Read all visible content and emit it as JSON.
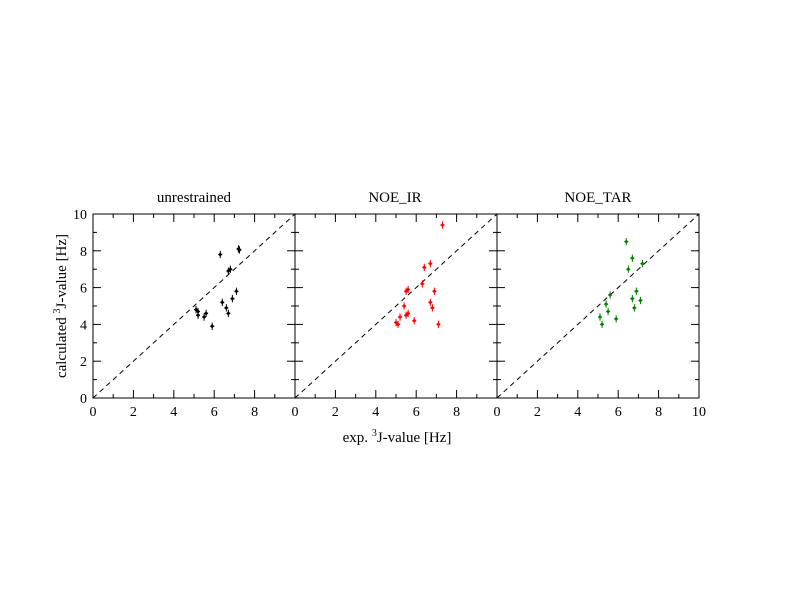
{
  "figure": {
    "ylabel_prefix": "calculated ",
    "ylabel_sup": "3",
    "ylabel_suffix": "J-value [Hz]",
    "xlabel_prefix": "exp. ",
    "xlabel_sup": "3",
    "xlabel_suffix": "J-value [Hz]"
  },
  "chart_data": [
    {
      "type": "scatter",
      "title": "unrestrained",
      "xlim": [
        0,
        10
      ],
      "ylim": [
        0,
        10
      ],
      "x_ticks": [
        "0",
        "2",
        "4",
        "6",
        "8"
      ],
      "y_ticks": [
        "0",
        "2",
        "4",
        "6",
        "8",
        "10"
      ],
      "diagonal": "y = x (dashed)",
      "color": "#000000",
      "points": [
        {
          "x": 5.1,
          "y": 4.8,
          "err": 0.2
        },
        {
          "x": 5.2,
          "y": 4.5,
          "err": 0.2
        },
        {
          "x": 5.2,
          "y": 4.7,
          "err": 0.2
        },
        {
          "x": 5.5,
          "y": 4.4,
          "err": 0.2
        },
        {
          "x": 5.6,
          "y": 4.6,
          "err": 0.2
        },
        {
          "x": 5.9,
          "y": 3.9,
          "err": 0.2
        },
        {
          "x": 6.3,
          "y": 7.8,
          "err": 0.2
        },
        {
          "x": 6.4,
          "y": 5.2,
          "err": 0.2
        },
        {
          "x": 6.6,
          "y": 4.9,
          "err": 0.2
        },
        {
          "x": 6.7,
          "y": 4.6,
          "err": 0.2
        },
        {
          "x": 6.7,
          "y": 6.9,
          "err": 0.2
        },
        {
          "x": 6.8,
          "y": 7.0,
          "err": 0.2
        },
        {
          "x": 6.9,
          "y": 5.4,
          "err": 0.2
        },
        {
          "x": 7.1,
          "y": 5.8,
          "err": 0.2
        },
        {
          "x": 7.2,
          "y": 8.1,
          "err": 0.2
        },
        {
          "x": 7.25,
          "y": 8.05,
          "err": 0.2
        }
      ]
    },
    {
      "type": "scatter",
      "title": "NOE_IR",
      "xlim": [
        0,
        10
      ],
      "ylim": [
        0,
        10
      ],
      "x_ticks": [
        "0",
        "2",
        "4",
        "6",
        "8"
      ],
      "y_ticks": [],
      "diagonal": "y = x (dashed)",
      "color": "#ff0000",
      "points": [
        {
          "x": 5.0,
          "y": 4.1,
          "err": 0.2
        },
        {
          "x": 5.1,
          "y": 4.0,
          "err": 0.2
        },
        {
          "x": 5.2,
          "y": 4.4,
          "err": 0.2
        },
        {
          "x": 5.4,
          "y": 5.0,
          "err": 0.2
        },
        {
          "x": 5.5,
          "y": 4.5,
          "err": 0.2
        },
        {
          "x": 5.5,
          "y": 5.8,
          "err": 0.2
        },
        {
          "x": 5.6,
          "y": 4.6,
          "err": 0.2
        },
        {
          "x": 5.6,
          "y": 5.9,
          "err": 0.2
        },
        {
          "x": 5.9,
          "y": 4.2,
          "err": 0.2
        },
        {
          "x": 6.3,
          "y": 6.2,
          "err": 0.2
        },
        {
          "x": 6.4,
          "y": 7.1,
          "err": 0.2
        },
        {
          "x": 6.7,
          "y": 7.3,
          "err": 0.2
        },
        {
          "x": 6.7,
          "y": 5.2,
          "err": 0.2
        },
        {
          "x": 6.8,
          "y": 4.9,
          "err": 0.2
        },
        {
          "x": 6.9,
          "y": 5.8,
          "err": 0.2
        },
        {
          "x": 7.1,
          "y": 4.0,
          "err": 0.2
        },
        {
          "x": 7.3,
          "y": 9.4,
          "err": 0.2
        }
      ]
    },
    {
      "type": "scatter",
      "title": "NOE_TAR",
      "xlim": [
        0,
        10
      ],
      "ylim": [
        0,
        10
      ],
      "x_ticks": [
        "0",
        "2",
        "4",
        "6",
        "8",
        "10"
      ],
      "y_ticks": [],
      "diagonal": "y = x (dashed)",
      "color": "#008000",
      "points": [
        {
          "x": 5.1,
          "y": 4.4,
          "err": 0.2
        },
        {
          "x": 5.2,
          "y": 4.0,
          "err": 0.2
        },
        {
          "x": 5.4,
          "y": 5.1,
          "err": 0.2
        },
        {
          "x": 5.5,
          "y": 4.7,
          "err": 0.2
        },
        {
          "x": 5.6,
          "y": 5.6,
          "err": 0.2
        },
        {
          "x": 5.9,
          "y": 4.3,
          "err": 0.2
        },
        {
          "x": 6.4,
          "y": 8.5,
          "err": 0.2
        },
        {
          "x": 6.5,
          "y": 7.0,
          "err": 0.2
        },
        {
          "x": 6.7,
          "y": 5.4,
          "err": 0.2
        },
        {
          "x": 6.7,
          "y": 7.6,
          "err": 0.2
        },
        {
          "x": 6.8,
          "y": 4.9,
          "err": 0.2
        },
        {
          "x": 6.9,
          "y": 5.8,
          "err": 0.2
        },
        {
          "x": 7.1,
          "y": 5.3,
          "err": 0.2
        },
        {
          "x": 7.2,
          "y": 7.3,
          "err": 0.2
        }
      ]
    }
  ]
}
